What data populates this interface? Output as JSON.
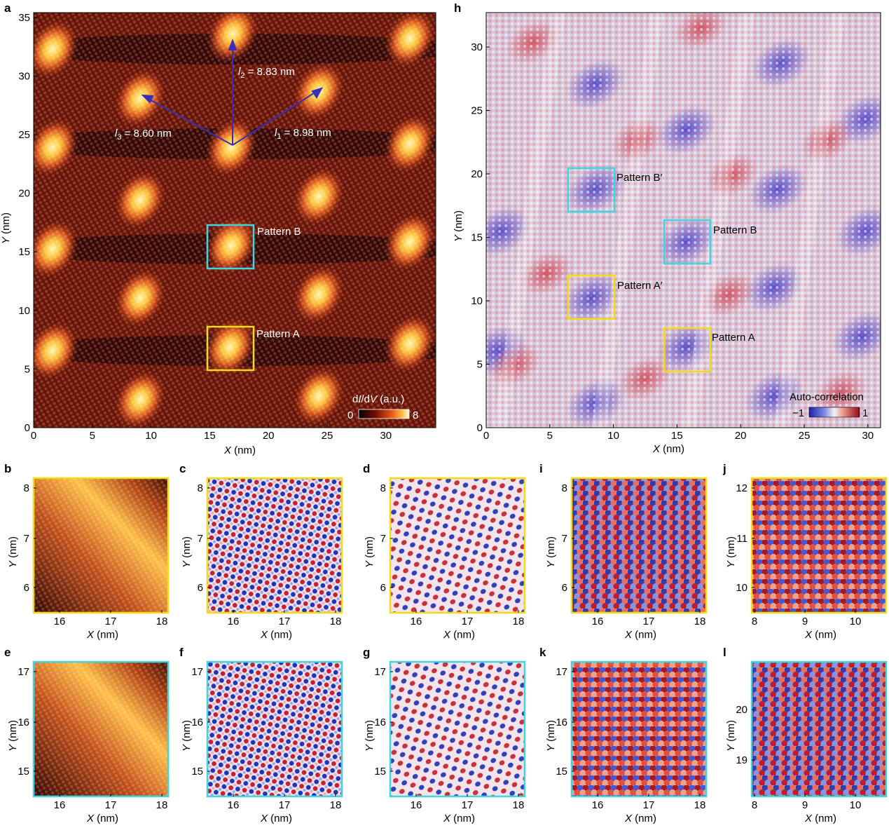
{
  "panel_letters": {
    "a": "a",
    "b": "b",
    "c": "c",
    "d": "d",
    "e": "e",
    "f": "f",
    "g": "g",
    "h": "h",
    "i": "i",
    "j": "j",
    "k": "k",
    "l": "l"
  },
  "axis_labels": {
    "x_var": "X",
    "y_var": "Y",
    "unit": " (nm)"
  },
  "colors": {
    "highlight_yellow": "#f2dc18",
    "highlight_cyan": "#3fd6df",
    "vector_blue": "#3a2fb4",
    "map_dark": "#1a0000",
    "map_bright": "#fff2a0"
  },
  "panel_a": {
    "x_ticks": [
      "0",
      "5",
      "10",
      "15",
      "20",
      "25",
      "30"
    ],
    "y_ticks": [
      "0",
      "5",
      "10",
      "15",
      "20",
      "25",
      "30",
      "35"
    ],
    "vectors": [
      {
        "sym": "l",
        "sub": "1",
        "text": " = 8.98 nm"
      },
      {
        "sym": "l",
        "sub": "2",
        "text": " = 8.83 nm"
      },
      {
        "sym": "l",
        "sub": "3",
        "text": " = 8.60 nm"
      }
    ],
    "pattern_b": "Pattern B",
    "pattern_a": "Pattern A",
    "colorbar": {
      "label_pre": "d",
      "label_i": "I",
      "label_mid": "/d",
      "label_v": "V",
      "label_post": " (a.u.)",
      "min": "0",
      "max": "8"
    }
  },
  "panel_h": {
    "x_ticks": [
      "0",
      "5",
      "10",
      "15",
      "20",
      "25",
      "30"
    ],
    "y_ticks": [
      "0",
      "5",
      "10",
      "15",
      "20",
      "25",
      "30"
    ],
    "patterns": [
      "Pattern B′",
      "Pattern B",
      "Pattern A′",
      "Pattern A"
    ],
    "colorbar": {
      "label": "Auto-correlation",
      "min": "−1",
      "max": "1"
    }
  },
  "small_panels": {
    "b": {
      "x_ticks": [
        "16",
        "17",
        "18"
      ],
      "y_ticks": [
        "6",
        "7",
        "8"
      ]
    },
    "c": {
      "x_ticks": [
        "16",
        "17",
        "18"
      ],
      "y_ticks": [
        "6",
        "7",
        "8"
      ]
    },
    "d": {
      "x_ticks": [
        "16",
        "17",
        "18"
      ],
      "y_ticks": [
        "6",
        "7",
        "8"
      ]
    },
    "i": {
      "x_ticks": [
        "16",
        "17",
        "18"
      ],
      "y_ticks": [
        "6",
        "7",
        "8"
      ]
    },
    "j": {
      "x_ticks": [
        "8",
        "9",
        "10"
      ],
      "y_ticks": [
        "10",
        "11",
        "12"
      ]
    },
    "e": {
      "x_ticks": [
        "16",
        "17",
        "18"
      ],
      "y_ticks": [
        "15",
        "16",
        "17"
      ]
    },
    "f": {
      "x_ticks": [
        "16",
        "17",
        "18"
      ],
      "y_ticks": [
        "15",
        "16",
        "17"
      ]
    },
    "g": {
      "x_ticks": [
        "16",
        "17",
        "18"
      ],
      "y_ticks": [
        "15",
        "16",
        "17"
      ]
    },
    "k": {
      "x_ticks": [
        "16",
        "17",
        "18"
      ],
      "y_ticks": [
        "15",
        "16",
        "17"
      ]
    },
    "l": {
      "x_ticks": [
        "8",
        "9",
        "10"
      ],
      "y_ticks": [
        "19",
        "20"
      ]
    }
  }
}
